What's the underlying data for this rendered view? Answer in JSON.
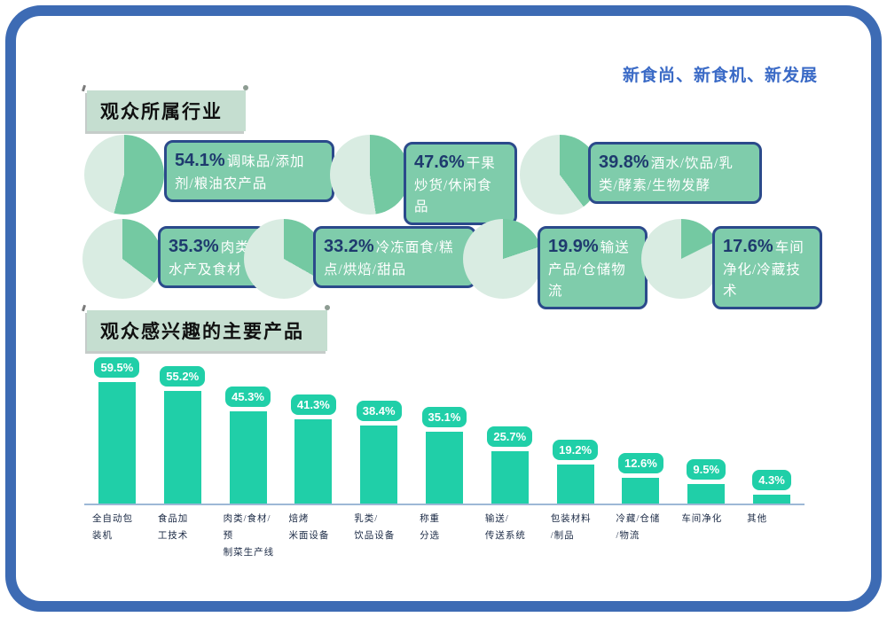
{
  "page": {
    "slogan": "新食尚、新食机、新发展"
  },
  "sections": {
    "industries_title": "观众所属行业",
    "products_title": "观众感兴趣的主要产品"
  },
  "colors": {
    "frame_blue": "#3d6bb4",
    "slogan_blue": "#3a6ac6",
    "title_box_bg": "#c5ded0",
    "pie_dark": "#74c9a2",
    "pie_light": "#d9ece2",
    "stat_bg": "#7fccab",
    "stat_border": "#2b4a8b",
    "pct_text": "#1e3a6e",
    "stat_label_text": "#ffffff",
    "bar_teal": "#20cfa8",
    "axis_line": "#9db8d6",
    "xlabel_text": "#1b2a45"
  },
  "chart_data": [
    {
      "type": "pie",
      "title": "观众所属行业",
      "legend_position": "right-of-each-pie",
      "items": [
        {
          "value": 54.1,
          "display": "54.1%",
          "label": "调味品/添加剂/粮油农产品"
        },
        {
          "value": 47.6,
          "display": "47.6%",
          "label": "干果炒货/休闲食品"
        },
        {
          "value": 39.8,
          "display": "39.8%",
          "label": "酒水/饮品/乳类/酵素/生物发酵"
        },
        {
          "value": 35.3,
          "display": "35.3%",
          "label": "肉类/水产及食材"
        },
        {
          "value": 33.2,
          "display": "33.2%",
          "label": "冷冻面食/糕点/烘焙/甜品"
        },
        {
          "value": 19.9,
          "display": "19.9%",
          "label": "输送产品/仓储物流"
        },
        {
          "value": 17.6,
          "display": "17.6%",
          "label": "车间净化/冷藏技术"
        }
      ]
    },
    {
      "type": "bar",
      "title": "观众感兴趣的主要产品",
      "categories": [
        "全自动包装机",
        "食品加工技术",
        "肉类/食材/预制菜生产线",
        "焙烤米面设备",
        "乳类/饮品设备",
        "称重分选",
        "输送/传送系统",
        "包装材料/制品",
        "冷藏/仓储/物流",
        "车间净化",
        "其他"
      ],
      "categories_display": [
        "全自动包\n装机",
        "食品加\n工技术",
        "肉类/食材/预\n制菜生产线",
        "焙烤\n米面设备",
        "乳类/\n饮品设备",
        "称重\n分选",
        "输送/\n传送系统",
        "包装材料\n/制品",
        "冷藏/仓储\n/物流",
        "车间净化",
        "其他"
      ],
      "values": [
        59.5,
        55.2,
        45.3,
        41.3,
        38.4,
        35.1,
        25.7,
        19.2,
        12.6,
        9.5,
        4.3
      ],
      "value_labels": [
        "59.5%",
        "55.2%",
        "45.3%",
        "41.3%",
        "38.4%",
        "35.1%",
        "25.7%",
        "19.2%",
        "12.6%",
        "9.5%",
        "4.3%"
      ],
      "ylim": [
        0,
        60
      ],
      "grid": false
    }
  ]
}
